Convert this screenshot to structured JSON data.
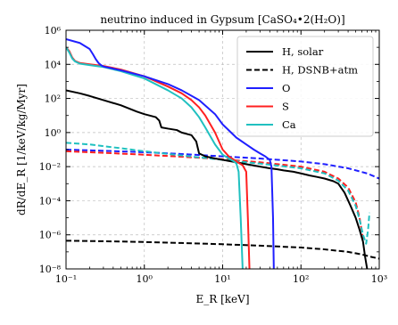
{
  "chart_data": {
    "type": "line",
    "title": "neutrino induced in Gypsum [CaSO₄•2(H₂O)]",
    "xlabel": "E_R [keV]",
    "ylabel": "dR/dE_R [1/keV/kg/Myr]",
    "xscale": "log",
    "yscale": "log",
    "xlim": [
      0.1,
      1000
    ],
    "ylim": [
      1e-08,
      1000000
    ],
    "grid": true,
    "legend_position": "top-right",
    "x_ticks": [
      "10⁻¹",
      "10⁰",
      "10¹",
      "10²",
      "10³"
    ],
    "y_ticks": [
      "10⁻⁸",
      "10⁻⁶",
      "10⁻⁴",
      "10⁻²",
      "10⁰",
      "10²",
      "10⁴",
      "10⁶"
    ],
    "legend": [
      {
        "label": "H, solar",
        "color": "#000000",
        "style": "solid"
      },
      {
        "label": "H, DSNB+atm",
        "color": "#000000",
        "style": "dashed"
      },
      {
        "label": "O",
        "color": "#1f1fff",
        "style": "solid"
      },
      {
        "label": "S",
        "color": "#ff2020",
        "style": "solid"
      },
      {
        "label": "Ca",
        "color": "#20c0c0",
        "style": "solid"
      }
    ],
    "series": [
      {
        "name": "H, solar",
        "color": "#000000",
        "style": "solid",
        "x": [
          0.1,
          0.15,
          0.2,
          0.3,
          0.5,
          0.8,
          1.0,
          1.4,
          1.55,
          1.65,
          2.0,
          2.6,
          3.0,
          4.0,
          4.6,
          5.0,
          6.0,
          8.0,
          10,
          15,
          20,
          30,
          40,
          50,
          60,
          80,
          100,
          130,
          160,
          200,
          260,
          300,
          360,
          430,
          500,
          560,
          620,
          660,
          700
        ],
        "y": [
          300,
          200,
          140,
          80,
          40,
          17,
          12,
          8,
          5,
          2,
          1.7,
          1.4,
          1,
          0.7,
          0.3,
          0.06,
          0.04,
          0.03,
          0.025,
          0.018,
          0.014,
          0.01,
          0.008,
          0.007,
          0.006,
          0.005,
          0.004,
          0.003,
          0.0025,
          0.002,
          0.0014,
          0.001,
          0.0003,
          5e-05,
          1e-05,
          2e-06,
          4e-07,
          5e-08,
          1e-08
        ]
      },
      {
        "name": "H, DSNB+atm",
        "color": "#000000",
        "style": "dashed",
        "x": [
          0.1,
          0.3,
          1,
          3,
          10,
          30,
          100,
          200,
          400,
          600,
          800,
          1000
        ],
        "y": [
          4.5e-07,
          4.2e-07,
          3.8e-07,
          3.3e-07,
          2.8e-07,
          2.3e-07,
          1.8e-07,
          1.4e-07,
          1e-07,
          7e-08,
          5e-08,
          4e-08
        ]
      },
      {
        "name": "O",
        "color": "#1f1fff",
        "style": "solid",
        "x": [
          0.1,
          0.15,
          0.2,
          0.22,
          0.24,
          0.26,
          0.28,
          0.3,
          0.5,
          1,
          2,
          3,
          5,
          8,
          10,
          15,
          20,
          25,
          30,
          35,
          40,
          42,
          44,
          45
        ],
        "y": [
          300000,
          180000,
          80000,
          40000,
          20000,
          12000,
          9000,
          7500,
          4500,
          2000,
          700,
          300,
          80,
          12,
          3,
          0.5,
          0.2,
          0.1,
          0.06,
          0.04,
          0.025,
          0.01,
          1e-05,
          1e-08
        ]
      },
      {
        "name": "S",
        "color": "#ff2020",
        "style": "solid",
        "x": [
          0.1,
          0.11,
          0.12,
          0.13,
          0.15,
          0.2,
          0.3,
          0.5,
          1,
          2,
          3,
          4,
          5,
          6,
          8,
          10,
          12,
          15,
          18,
          20,
          21,
          22
        ],
        "y": [
          100000,
          60000,
          25000,
          16000,
          12000,
          10000,
          8000,
          5000,
          2000,
          500,
          200,
          80,
          30,
          10,
          1,
          0.1,
          0.04,
          0.02,
          0.012,
          0.005,
          1e-05,
          1e-08
        ]
      },
      {
        "name": "Ca",
        "color": "#20c0c0",
        "style": "solid",
        "x": [
          0.1,
          0.11,
          0.12,
          0.13,
          0.15,
          0.2,
          0.3,
          0.5,
          1,
          2,
          3,
          4,
          5,
          6,
          8,
          10,
          12,
          14,
          15,
          16,
          17,
          18
        ],
        "y": [
          100000,
          50000,
          22000,
          15000,
          11000,
          9000,
          7000,
          4000,
          1500,
          300,
          100,
          30,
          8,
          2,
          0.2,
          0.05,
          0.03,
          0.02,
          0.015,
          0.005,
          1e-05,
          1e-08
        ]
      },
      {
        "name": "O",
        "color": "#1f1fff",
        "style": "dashed",
        "x": [
          0.1,
          0.3,
          1,
          3,
          10,
          30,
          100,
          200,
          400,
          700,
          1000
        ],
        "y": [
          0.1,
          0.085,
          0.07,
          0.055,
          0.04,
          0.03,
          0.02,
          0.014,
          0.008,
          0.004,
          0.002
        ]
      },
      {
        "name": "S",
        "color": "#ff2020",
        "style": "dashed",
        "x": [
          0.1,
          0.3,
          1,
          3,
          10,
          30,
          100,
          200,
          300,
          400,
          500,
          560,
          600,
          620
        ],
        "y": [
          0.08,
          0.065,
          0.05,
          0.038,
          0.027,
          0.018,
          0.01,
          0.005,
          0.002,
          0.0006,
          8e-05,
          1e-05,
          1.5e-06,
          5e-07
        ]
      },
      {
        "name": "Ca",
        "color": "#20c0c0",
        "style": "dashed",
        "x": [
          0.1,
          0.2,
          0.5,
          1,
          3,
          10,
          30,
          100,
          200,
          300,
          400,
          500,
          560,
          620,
          680,
          720,
          750
        ],
        "y": [
          0.25,
          0.2,
          0.12,
          0.08,
          0.045,
          0.025,
          0.015,
          0.008,
          0.004,
          0.0015,
          0.0004,
          5e-05,
          8e-06,
          1e-06,
          3e-07,
          2e-06,
          2e-05
        ]
      }
    ]
  }
}
